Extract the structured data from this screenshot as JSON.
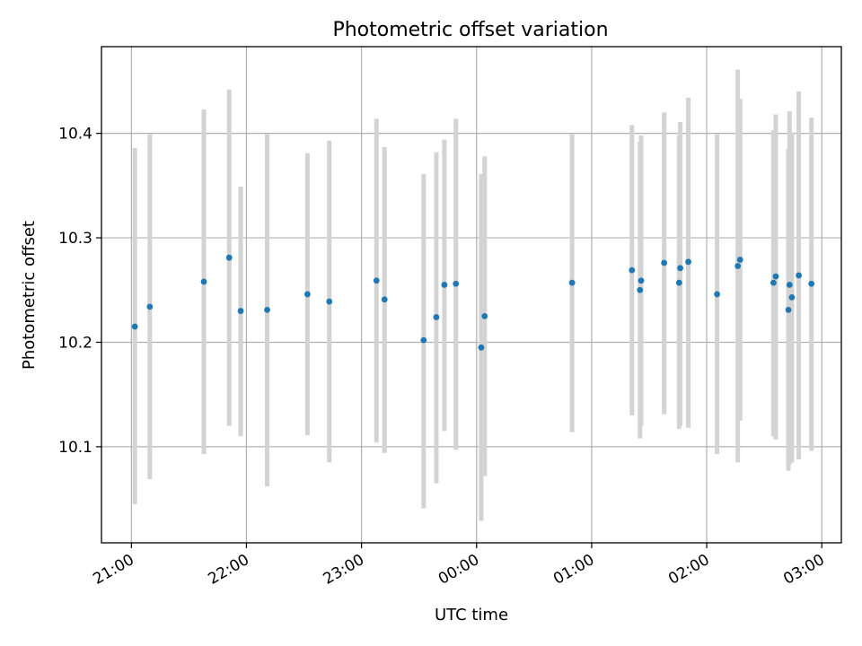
{
  "chart_data": {
    "type": "scatter",
    "title": "Photometric offset variation",
    "xlabel": "UTC time",
    "ylabel": "Photometric offset",
    "x_tick_labels": [
      "21:00",
      "22:00",
      "23:00",
      "00:00",
      "01:00",
      "02:00",
      "03:00"
    ],
    "y_tick_labels": [
      "10.1",
      "10.2",
      "10.3",
      "10.4"
    ],
    "y_ticks": [
      10.1,
      10.2,
      10.3,
      10.4
    ],
    "x_range_hours": [
      20.74,
      27.17
    ],
    "ylim": [
      10.008,
      10.483
    ],
    "grid": true,
    "marker_color": "#1f77b4",
    "errorbar_color": "#d3d3d3",
    "x_ticks_hours": [
      21,
      22,
      23,
      24,
      25,
      26,
      27
    ],
    "points": [
      {
        "t": 21.03,
        "y": 10.215,
        "lo": 10.045,
        "hi": 10.386
      },
      {
        "t": 21.16,
        "y": 10.234,
        "lo": 10.069,
        "hi": 10.399
      },
      {
        "t": 21.63,
        "y": 10.258,
        "lo": 10.093,
        "hi": 10.423
      },
      {
        "t": 21.85,
        "y": 10.281,
        "lo": 10.12,
        "hi": 10.442
      },
      {
        "t": 21.95,
        "y": 10.23,
        "lo": 10.11,
        "hi": 10.349
      },
      {
        "t": 22.18,
        "y": 10.231,
        "lo": 10.062,
        "hi": 10.399
      },
      {
        "t": 22.53,
        "y": 10.246,
        "lo": 10.111,
        "hi": 10.381
      },
      {
        "t": 22.72,
        "y": 10.239,
        "lo": 10.085,
        "hi": 10.393
      },
      {
        "t": 23.13,
        "y": 10.259,
        "lo": 10.104,
        "hi": 10.414
      },
      {
        "t": 23.2,
        "y": 10.241,
        "lo": 10.094,
        "hi": 10.387
      },
      {
        "t": 23.54,
        "y": 10.202,
        "lo": 10.041,
        "hi": 10.361
      },
      {
        "t": 23.65,
        "y": 10.224,
        "lo": 10.065,
        "hi": 10.382
      },
      {
        "t": 23.72,
        "y": 10.255,
        "lo": 10.115,
        "hi": 10.394
      },
      {
        "t": 23.82,
        "y": 10.256,
        "lo": 10.097,
        "hi": 10.414
      },
      {
        "t": 24.04,
        "y": 10.195,
        "lo": 10.029,
        "hi": 10.361
      },
      {
        "t": 24.07,
        "y": 10.225,
        "lo": 10.072,
        "hi": 10.378
      },
      {
        "t": 24.83,
        "y": 10.257,
        "lo": 10.114,
        "hi": 10.399
      },
      {
        "t": 25.35,
        "y": 10.269,
        "lo": 10.13,
        "hi": 10.408
      },
      {
        "t": 25.42,
        "y": 10.25,
        "lo": 10.108,
        "hi": 10.392
      },
      {
        "t": 25.43,
        "y": 10.259,
        "lo": 10.12,
        "hi": 10.398
      },
      {
        "t": 25.63,
        "y": 10.276,
        "lo": 10.131,
        "hi": 10.42
      },
      {
        "t": 25.76,
        "y": 10.257,
        "lo": 10.117,
        "hi": 10.398
      },
      {
        "t": 25.77,
        "y": 10.271,
        "lo": 10.12,
        "hi": 10.411
      },
      {
        "t": 25.84,
        "y": 10.277,
        "lo": 10.118,
        "hi": 10.434
      },
      {
        "t": 26.09,
        "y": 10.246,
        "lo": 10.093,
        "hi": 10.399
      },
      {
        "t": 26.27,
        "y": 10.273,
        "lo": 10.085,
        "hi": 10.461
      },
      {
        "t": 26.29,
        "y": 10.279,
        "lo": 10.125,
        "hi": 10.433
      },
      {
        "t": 26.58,
        "y": 10.257,
        "lo": 10.11,
        "hi": 10.403
      },
      {
        "t": 26.6,
        "y": 10.263,
        "lo": 10.107,
        "hi": 10.418
      },
      {
        "t": 26.71,
        "y": 10.231,
        "lo": 10.077,
        "hi": 10.385
      },
      {
        "t": 26.72,
        "y": 10.255,
        "lo": 10.083,
        "hi": 10.421
      },
      {
        "t": 26.74,
        "y": 10.243,
        "lo": 10.085,
        "hi": 10.401
      },
      {
        "t": 26.8,
        "y": 10.264,
        "lo": 10.088,
        "hi": 10.44
      },
      {
        "t": 26.91,
        "y": 10.256,
        "lo": 10.096,
        "hi": 10.415
      }
    ]
  }
}
